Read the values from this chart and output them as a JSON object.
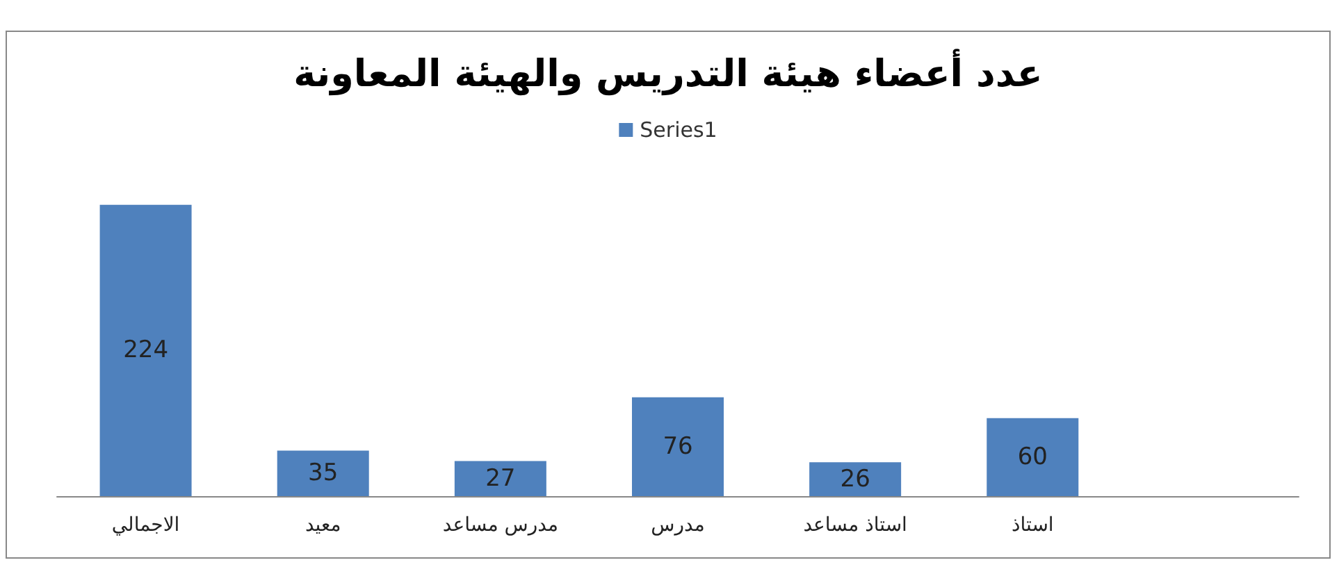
{
  "chart_data": {
    "type": "bar",
    "title": "عدد أعضاء هيئة التدريس والهيئة المعاونة",
    "categories": [
      "الاجمالي",
      "معيد",
      "مدرس مساعد",
      "مدرس",
      "استاذ مساعد",
      "استاذ",
      null
    ],
    "series": [
      {
        "name": "Series1",
        "color": "#4f81bd",
        "values": [
          224,
          35,
          27,
          76,
          26,
          60,
          null
        ]
      }
    ],
    "data_labels": true,
    "legend": "top"
  }
}
